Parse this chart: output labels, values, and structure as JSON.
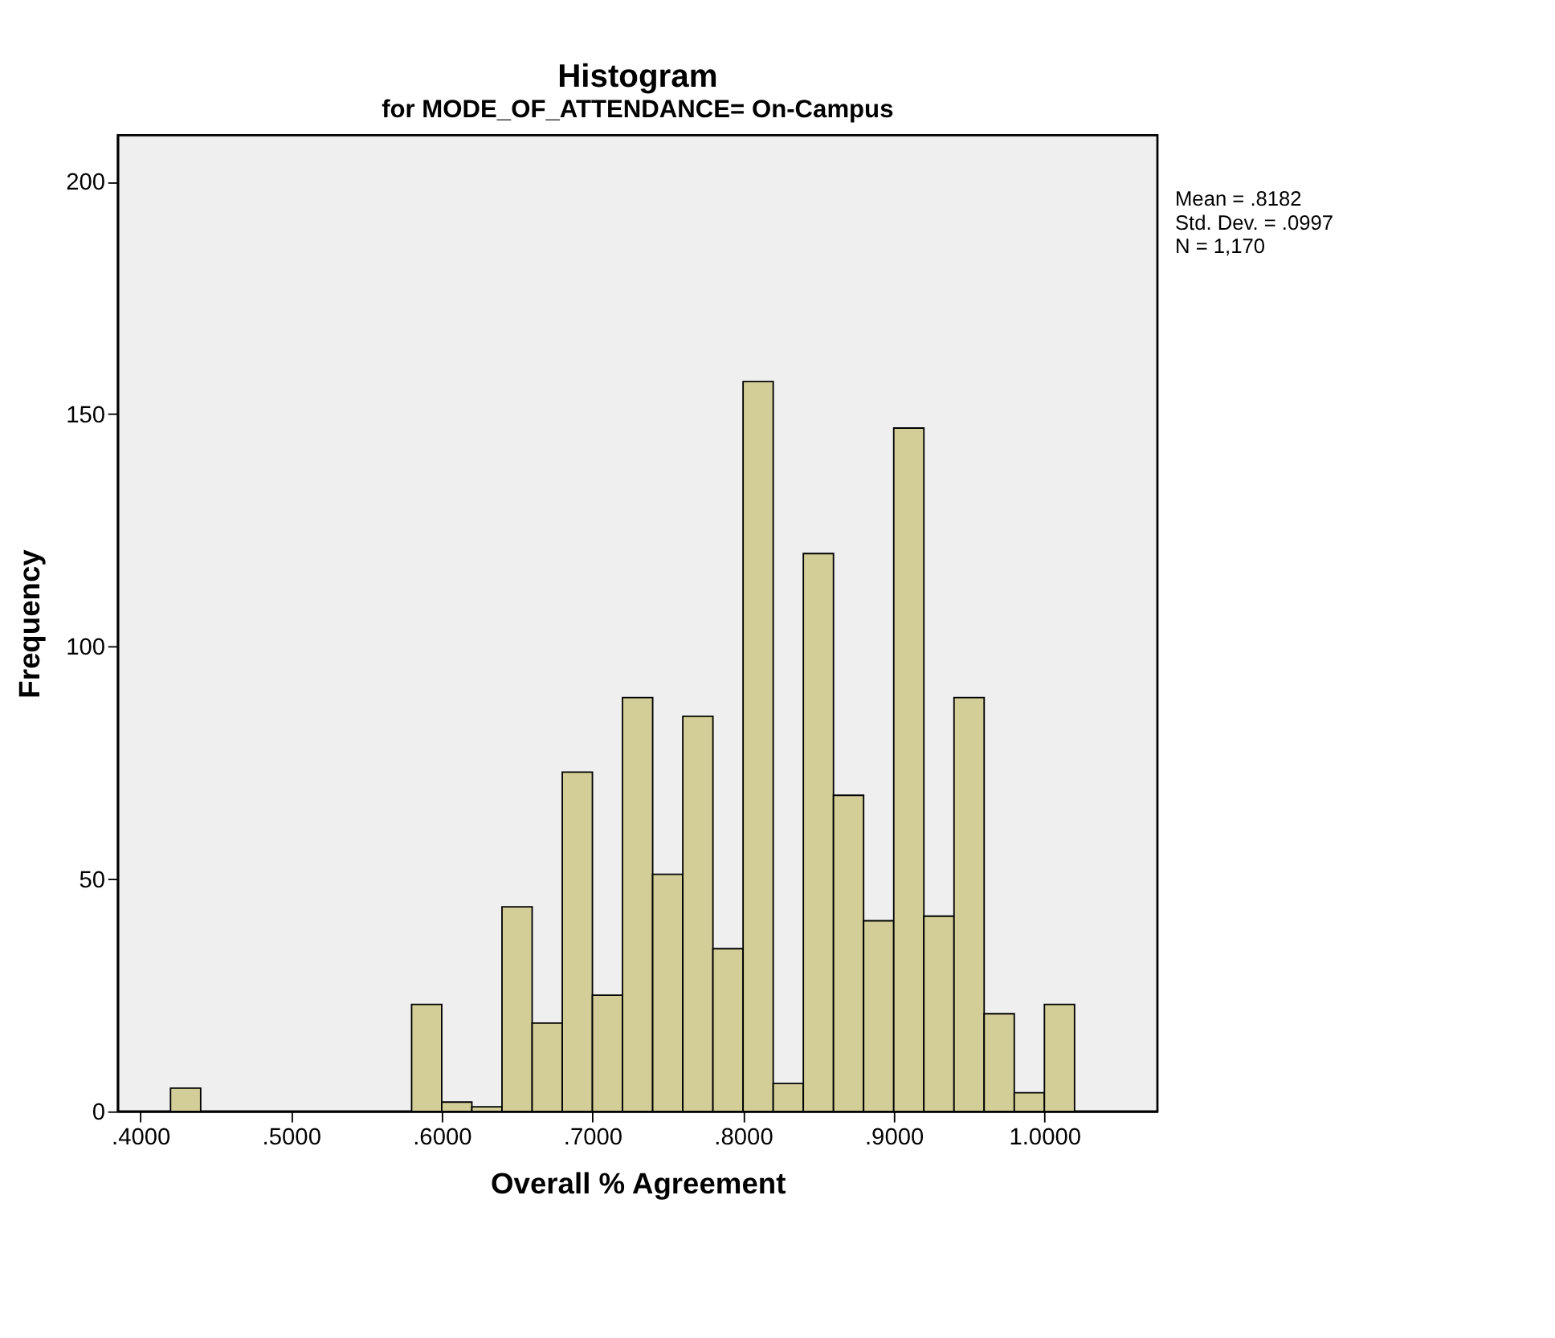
{
  "chart_data": {
    "type": "histogram",
    "title": "Histogram",
    "subtitle": "for MODE_OF_ATTENDANCE= On-Campus",
    "xlabel": "Overall % Agreement",
    "ylabel": "Frequency",
    "bins": [
      0.42,
      0.44,
      0.46,
      0.48,
      0.5,
      0.52,
      0.54,
      0.56,
      0.58,
      0.6,
      0.62,
      0.64,
      0.66,
      0.68,
      0.7,
      0.72,
      0.74,
      0.76,
      0.78,
      0.8,
      0.82,
      0.84,
      0.86,
      0.88,
      0.9,
      0.92,
      0.94,
      0.96,
      0.98,
      1.0,
      1.02
    ],
    "values": [
      5,
      0,
      0,
      0,
      0,
      0,
      0,
      0,
      23,
      2,
      1,
      44,
      19,
      73,
      25,
      89,
      51,
      85,
      35,
      157,
      6,
      120,
      68,
      41,
      147,
      42,
      89,
      21,
      4,
      23
    ],
    "color": "#d3ce97",
    "xlim": [
      0.385,
      1.075
    ],
    "xticks": [
      {
        "value": 0.4,
        "label": ".4000"
      },
      {
        "value": 0.5,
        "label": ".5000"
      },
      {
        "value": 0.6,
        "label": ".6000"
      },
      {
        "value": 0.7,
        "label": ".7000"
      },
      {
        "value": 0.8,
        "label": ".8000"
      },
      {
        "value": 0.9,
        "label": ".9000"
      },
      {
        "value": 1.0,
        "label": "1.0000"
      }
    ],
    "ylim": [
      0,
      210
    ],
    "yticks": [
      0,
      50,
      100,
      150,
      200
    ],
    "grid": false,
    "annotations": [
      "Mean = .8182",
      "Std. Dev. = .0997",
      "N = 1,170"
    ]
  }
}
